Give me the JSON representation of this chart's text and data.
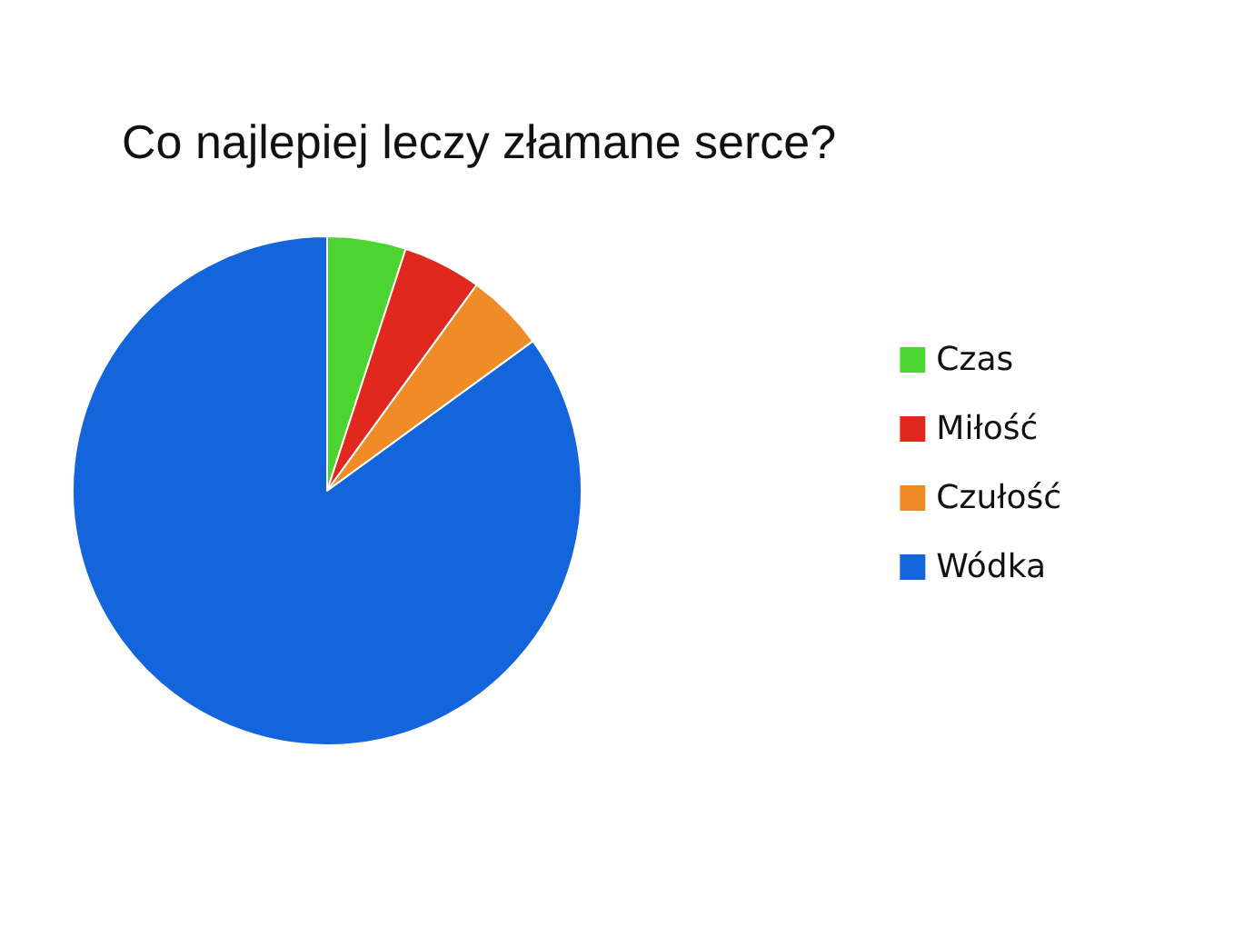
{
  "chart_data": {
    "type": "pie",
    "title": "Co najlepiej leczy złamane serce?",
    "categories": [
      "Czas",
      "Miłość",
      "Czułość",
      "Wódka"
    ],
    "values": [
      5,
      5,
      5,
      85
    ],
    "colors": [
      "#4cd430",
      "#e0281e",
      "#f08c28",
      "#1464dc"
    ],
    "legend": "right"
  }
}
